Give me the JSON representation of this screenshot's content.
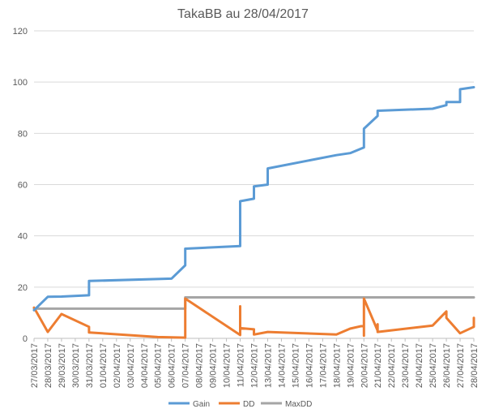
{
  "chart_data": {
    "type": "line",
    "title": "TakaBB au 28/04/2017",
    "xlabel": "",
    "ylabel": "",
    "ylim": [
      0,
      120
    ],
    "yticks": [
      0,
      20,
      40,
      60,
      80,
      100,
      120
    ],
    "grid": true,
    "legend_position": "bottom",
    "date_ticks": [
      "27/03/2017",
      "28/03/2017",
      "29/03/2017",
      "30/03/2017",
      "31/03/2017",
      "01/04/2017",
      "02/04/2017",
      "03/04/2017",
      "04/04/2017",
      "05/04/2017",
      "06/04/2017",
      "07/04/2017",
      "08/04/2017",
      "09/04/2017",
      "10/04/2017",
      "11/04/2017",
      "12/04/2017",
      "13/04/2017",
      "14/04/2017",
      "15/04/2017",
      "16/04/2017",
      "17/04/2017",
      "18/04/2017",
      "19/04/2017",
      "20/04/2017",
      "21/04/2017",
      "22/04/2017",
      "23/04/2017",
      "24/04/2017",
      "25/04/2017",
      "26/04/2017",
      "27/04/2017",
      "28/04/2017"
    ],
    "series": [
      {
        "name": "Gain",
        "color": "#5B9BD5",
        "points": [
          [
            "27/03/2017",
            11
          ],
          [
            "28/03/2017",
            16.2
          ],
          [
            "29/03/2017",
            16.3
          ],
          [
            "31/03/2017",
            16.8
          ],
          [
            "31/03/2017",
            22.4
          ],
          [
            "06/04/2017",
            23.3
          ],
          [
            "07/04/2017",
            28.5
          ],
          [
            "07/04/2017",
            35
          ],
          [
            "11/04/2017",
            36
          ],
          [
            "11/04/2017",
            53.5
          ],
          [
            "12/04/2017",
            54.5
          ],
          [
            "12/04/2017",
            59.3
          ],
          [
            "13/04/2017",
            60
          ],
          [
            "13/04/2017",
            66.3
          ],
          [
            "18/04/2017",
            71.5
          ],
          [
            "19/04/2017",
            72.3
          ],
          [
            "20/04/2017",
            74.5
          ],
          [
            "20/04/2017",
            81.8
          ],
          [
            "21/04/2017",
            86.8
          ],
          [
            "21/04/2017",
            88.8
          ],
          [
            "25/04/2017",
            89.6
          ],
          [
            "26/04/2017",
            91
          ],
          [
            "26/04/2017",
            92.2
          ],
          [
            "27/04/2017",
            92.2
          ],
          [
            "27/04/2017",
            97.2
          ],
          [
            "28/04/2017",
            98
          ]
        ]
      },
      {
        "name": "DD",
        "color": "#ED7D31",
        "points": [
          [
            "27/03/2017",
            12
          ],
          [
            "28/03/2017",
            2.5
          ],
          [
            "29/03/2017",
            9.5
          ],
          [
            "31/03/2017",
            4.5
          ],
          [
            "31/03/2017",
            2.3
          ],
          [
            "05/04/2017",
            0.5
          ],
          [
            "07/04/2017",
            0.3
          ],
          [
            "07/04/2017",
            15.5
          ],
          [
            "11/04/2017",
            1.3
          ],
          [
            "11/04/2017",
            12.5
          ],
          [
            "11/04/2017",
            4
          ],
          [
            "12/04/2017",
            3.5
          ],
          [
            "12/04/2017",
            1.5
          ],
          [
            "13/04/2017",
            2.5
          ],
          [
            "18/04/2017",
            1.5
          ],
          [
            "19/04/2017",
            3.8
          ],
          [
            "20/04/2017",
            5
          ],
          [
            "20/04/2017",
            1
          ],
          [
            "20/04/2017",
            15.5
          ],
          [
            "21/04/2017",
            3
          ],
          [
            "21/04/2017",
            5.5
          ],
          [
            "21/04/2017",
            2.5
          ],
          [
            "25/04/2017",
            5
          ],
          [
            "26/04/2017",
            10.5
          ],
          [
            "26/04/2017",
            8
          ],
          [
            "27/04/2017",
            2
          ],
          [
            "28/04/2017",
            4.5
          ],
          [
            "28/04/2017",
            8
          ]
        ]
      },
      {
        "name": "MaxDD",
        "color": "#A5A5A5",
        "points": [
          [
            "27/03/2017",
            11.6
          ],
          [
            "07/04/2017",
            11.6
          ],
          [
            "07/04/2017",
            16
          ],
          [
            "28/04/2017",
            16
          ]
        ]
      }
    ]
  }
}
